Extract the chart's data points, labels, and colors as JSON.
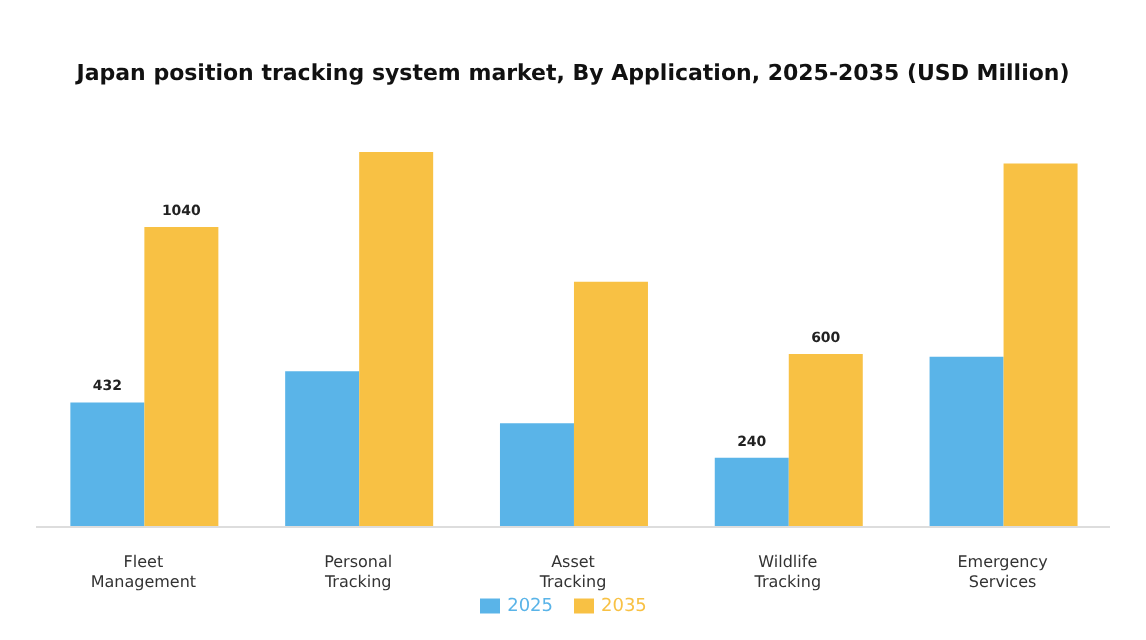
{
  "chart_data": {
    "type": "bar",
    "title": "Japan position tracking system market, By Application, 2025-2035 (USD Million)",
    "categories": [
      "Fleet Management",
      "Personal Tracking",
      "Asset Tracking",
      "Wildlife Tracking",
      "Emergency Services"
    ],
    "series": [
      {
        "name": "2025",
        "color": "#5ab4e8",
        "values": [
          432,
          540,
          360,
          240,
          590
        ],
        "value_labels": [
          "432",
          null,
          null,
          "240",
          null
        ]
      },
      {
        "name": "2035",
        "color": "#f8c144",
        "values": [
          1040,
          1300,
          850,
          600,
          1260
        ],
        "value_labels": [
          "1040",
          null,
          null,
          "600",
          null
        ]
      }
    ],
    "legend": "bottom",
    "grid": false
  }
}
